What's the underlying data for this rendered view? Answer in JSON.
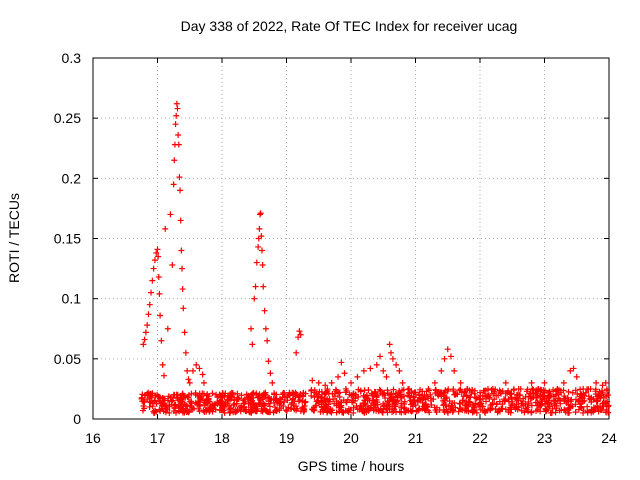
{
  "chart_data": {
    "type": "scatter",
    "title": "Day 338 of 2022, Rate Of TEC Index for receiver ucag",
    "xlabel": "GPS time / hours",
    "ylabel": "ROTI / TECUs",
    "xlim": [
      16,
      24
    ],
    "ylim": [
      0,
      0.3
    ],
    "xticks": [
      16,
      17,
      18,
      19,
      20,
      21,
      22,
      23,
      24
    ],
    "yticks": [
      0,
      0.05,
      0.1,
      0.15,
      0.2,
      0.25,
      0.3
    ],
    "ytick_labels": [
      "0",
      "0.05",
      "0.1",
      "0.15",
      "0.2",
      "0.25",
      "0.3"
    ],
    "grid": true,
    "marker": "plus",
    "color": "#ff0000",
    "series": [
      {
        "name": "ROTI",
        "points": [
          [
            16.78,
            0.062
          ],
          [
            16.8,
            0.066
          ],
          [
            16.82,
            0.072
          ],
          [
            16.84,
            0.078
          ],
          [
            16.86,
            0.087
          ],
          [
            16.88,
            0.095
          ],
          [
            16.9,
            0.105
          ],
          [
            16.92,
            0.115
          ],
          [
            16.94,
            0.125
          ],
          [
            16.96,
            0.132
          ],
          [
            16.98,
            0.138
          ],
          [
            17.0,
            0.141
          ],
          [
            17.01,
            0.135
          ],
          [
            17.02,
            0.118
          ],
          [
            17.03,
            0.104
          ],
          [
            17.04,
            0.086
          ],
          [
            17.06,
            0.065
          ],
          [
            17.08,
            0.045
          ],
          [
            17.1,
            0.036
          ],
          [
            17.12,
            0.158
          ],
          [
            17.16,
            0.075
          ],
          [
            17.2,
            0.17
          ],
          [
            17.23,
            0.128
          ],
          [
            17.25,
            0.195
          ],
          [
            17.26,
            0.215
          ],
          [
            17.27,
            0.228
          ],
          [
            17.28,
            0.245
          ],
          [
            17.29,
            0.252
          ],
          [
            17.3,
            0.262
          ],
          [
            17.31,
            0.258
          ],
          [
            17.32,
            0.236
          ],
          [
            17.33,
            0.228
          ],
          [
            17.34,
            0.201
          ],
          [
            17.35,
            0.19
          ],
          [
            17.36,
            0.165
          ],
          [
            17.37,
            0.14
          ],
          [
            17.38,
            0.125
          ],
          [
            17.39,
            0.108
          ],
          [
            17.4,
            0.092
          ],
          [
            17.42,
            0.072
          ],
          [
            17.44,
            0.055
          ],
          [
            17.46,
            0.04
          ],
          [
            17.48,
            0.033
          ],
          [
            17.5,
            0.03
          ],
          [
            17.55,
            0.04
          ],
          [
            17.6,
            0.045
          ],
          [
            17.65,
            0.042
          ],
          [
            17.7,
            0.037
          ],
          [
            17.72,
            0.03
          ],
          [
            18.45,
            0.075
          ],
          [
            18.47,
            0.062
          ],
          [
            18.5,
            0.1
          ],
          [
            18.52,
            0.11
          ],
          [
            18.54,
            0.13
          ],
          [
            18.56,
            0.143
          ],
          [
            18.57,
            0.15
          ],
          [
            18.58,
            0.158
          ],
          [
            18.59,
            0.17
          ],
          [
            18.6,
            0.171
          ],
          [
            18.61,
            0.152
          ],
          [
            18.62,
            0.14
          ],
          [
            18.63,
            0.128
          ],
          [
            18.64,
            0.11
          ],
          [
            18.66,
            0.09
          ],
          [
            18.68,
            0.075
          ],
          [
            18.7,
            0.065
          ],
          [
            18.72,
            0.048
          ],
          [
            18.75,
            0.038
          ],
          [
            18.78,
            0.03
          ],
          [
            19.15,
            0.055
          ],
          [
            19.18,
            0.068
          ],
          [
            19.2,
            0.073
          ],
          [
            19.22,
            0.07
          ],
          [
            19.4,
            0.032
          ],
          [
            19.5,
            0.03
          ],
          [
            19.6,
            0.028
          ],
          [
            19.7,
            0.03
          ],
          [
            19.8,
            0.035
          ],
          [
            19.85,
            0.047
          ],
          [
            19.9,
            0.038
          ],
          [
            20.0,
            0.03
          ],
          [
            20.1,
            0.035
          ],
          [
            20.2,
            0.04
          ],
          [
            20.3,
            0.042
          ],
          [
            20.4,
            0.045
          ],
          [
            20.45,
            0.052
          ],
          [
            20.5,
            0.04
          ],
          [
            20.55,
            0.035
          ],
          [
            20.6,
            0.062
          ],
          [
            20.62,
            0.055
          ],
          [
            20.65,
            0.05
          ],
          [
            20.7,
            0.045
          ],
          [
            20.75,
            0.04
          ],
          [
            20.8,
            0.03
          ],
          [
            20.9,
            0.025
          ],
          [
            21.0,
            0.022
          ],
          [
            21.2,
            0.025
          ],
          [
            21.3,
            0.03
          ],
          [
            21.4,
            0.04
          ],
          [
            21.45,
            0.05
          ],
          [
            21.5,
            0.058
          ],
          [
            21.55,
            0.052
          ],
          [
            21.6,
            0.04
          ],
          [
            21.7,
            0.03
          ],
          [
            21.8,
            0.025
          ],
          [
            22.0,
            0.022
          ],
          [
            22.2,
            0.025
          ],
          [
            22.4,
            0.03
          ],
          [
            22.6,
            0.025
          ],
          [
            22.8,
            0.03
          ],
          [
            22.9,
            0.025
          ],
          [
            23.0,
            0.03
          ],
          [
            23.2,
            0.025
          ],
          [
            23.3,
            0.03
          ],
          [
            23.4,
            0.04
          ],
          [
            23.45,
            0.042
          ],
          [
            23.5,
            0.035
          ],
          [
            23.6,
            0.025
          ],
          [
            23.8,
            0.03
          ],
          [
            23.9,
            0.028
          ],
          [
            23.95,
            0.03
          ]
        ],
        "baseline_band": [
          {
            "x_range": [
              16.75,
              19.3
            ],
            "y_range": [
              0.005,
              0.022
            ]
          },
          {
            "x_range": [
              19.38,
              24.0
            ],
            "y_range": [
              0.005,
              0.025
            ]
          }
        ]
      }
    ]
  }
}
